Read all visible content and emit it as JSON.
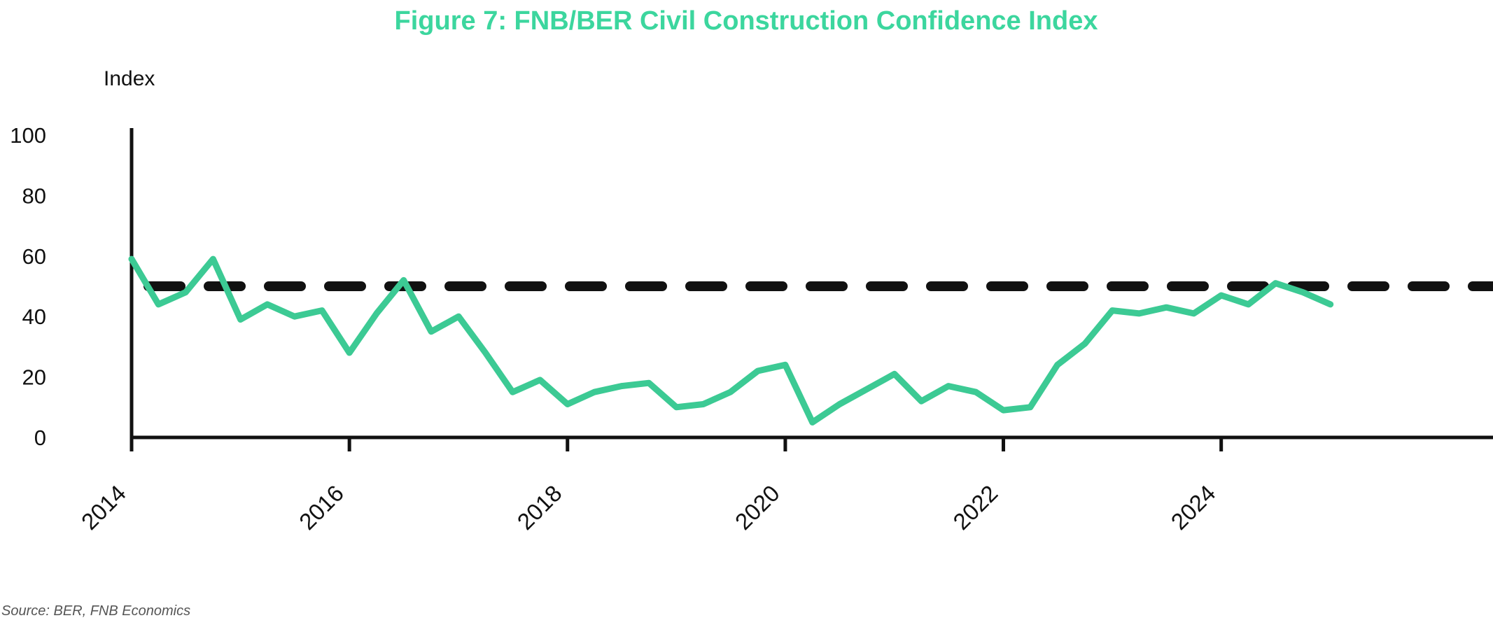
{
  "chart_data": {
    "type": "line",
    "title": "Figure 7: FNB/BER Civil Construction Confidence Index",
    "ylabel": "Index",
    "xlabel": "",
    "ylim": [
      0,
      100
    ],
    "xlim": [
      "2014-01-01",
      "2026-06-30"
    ],
    "y_ticks": [
      0,
      20,
      40,
      60,
      80,
      100
    ],
    "x_ticks": [
      "2014",
      "2016",
      "2018",
      "2020",
      "2022",
      "2024"
    ],
    "grid": false,
    "legend": "none",
    "colors": {
      "series": "#3cca94",
      "reference": "#111111",
      "title": "#3cd69e"
    },
    "series": [
      {
        "x": [
          "2014-01",
          "2014-04",
          "2014-07",
          "2014-10",
          "2015-01",
          "2015-04",
          "2015-07",
          "2015-10",
          "2016-01",
          "2016-04",
          "2016-07",
          "2016-10",
          "2017-01",
          "2017-04",
          "2017-07",
          "2017-10",
          "2018-01",
          "2018-04",
          "2018-07",
          "2018-10",
          "2019-01",
          "2019-04",
          "2019-07",
          "2019-10",
          "2020-01",
          "2020-04",
          "2020-07",
          "2020-10",
          "2021-01",
          "2021-04",
          "2021-07",
          "2021-10",
          "2022-01",
          "2022-04",
          "2022-07",
          "2022-10",
          "2023-01",
          "2023-04",
          "2023-07",
          "2023-10",
          "2024-01",
          "2024-04",
          "2024-07",
          "2024-10",
          "2025-01"
        ],
        "values": [
          59,
          44,
          48,
          59,
          39,
          44,
          40,
          42,
          28,
          41,
          52,
          35,
          40,
          28,
          15,
          19,
          11,
          15,
          17,
          18,
          10,
          11,
          15,
          22,
          24,
          5,
          11,
          16,
          21,
          12,
          17,
          15,
          9,
          10,
          24,
          31,
          42,
          41,
          43,
          41,
          47,
          44,
          51,
          48,
          44
        ]
      },
      {
        "type": "reference",
        "values": [
          50
        ]
      }
    ]
  },
  "footer": {
    "source": "Source: BER, FNB Economics"
  }
}
